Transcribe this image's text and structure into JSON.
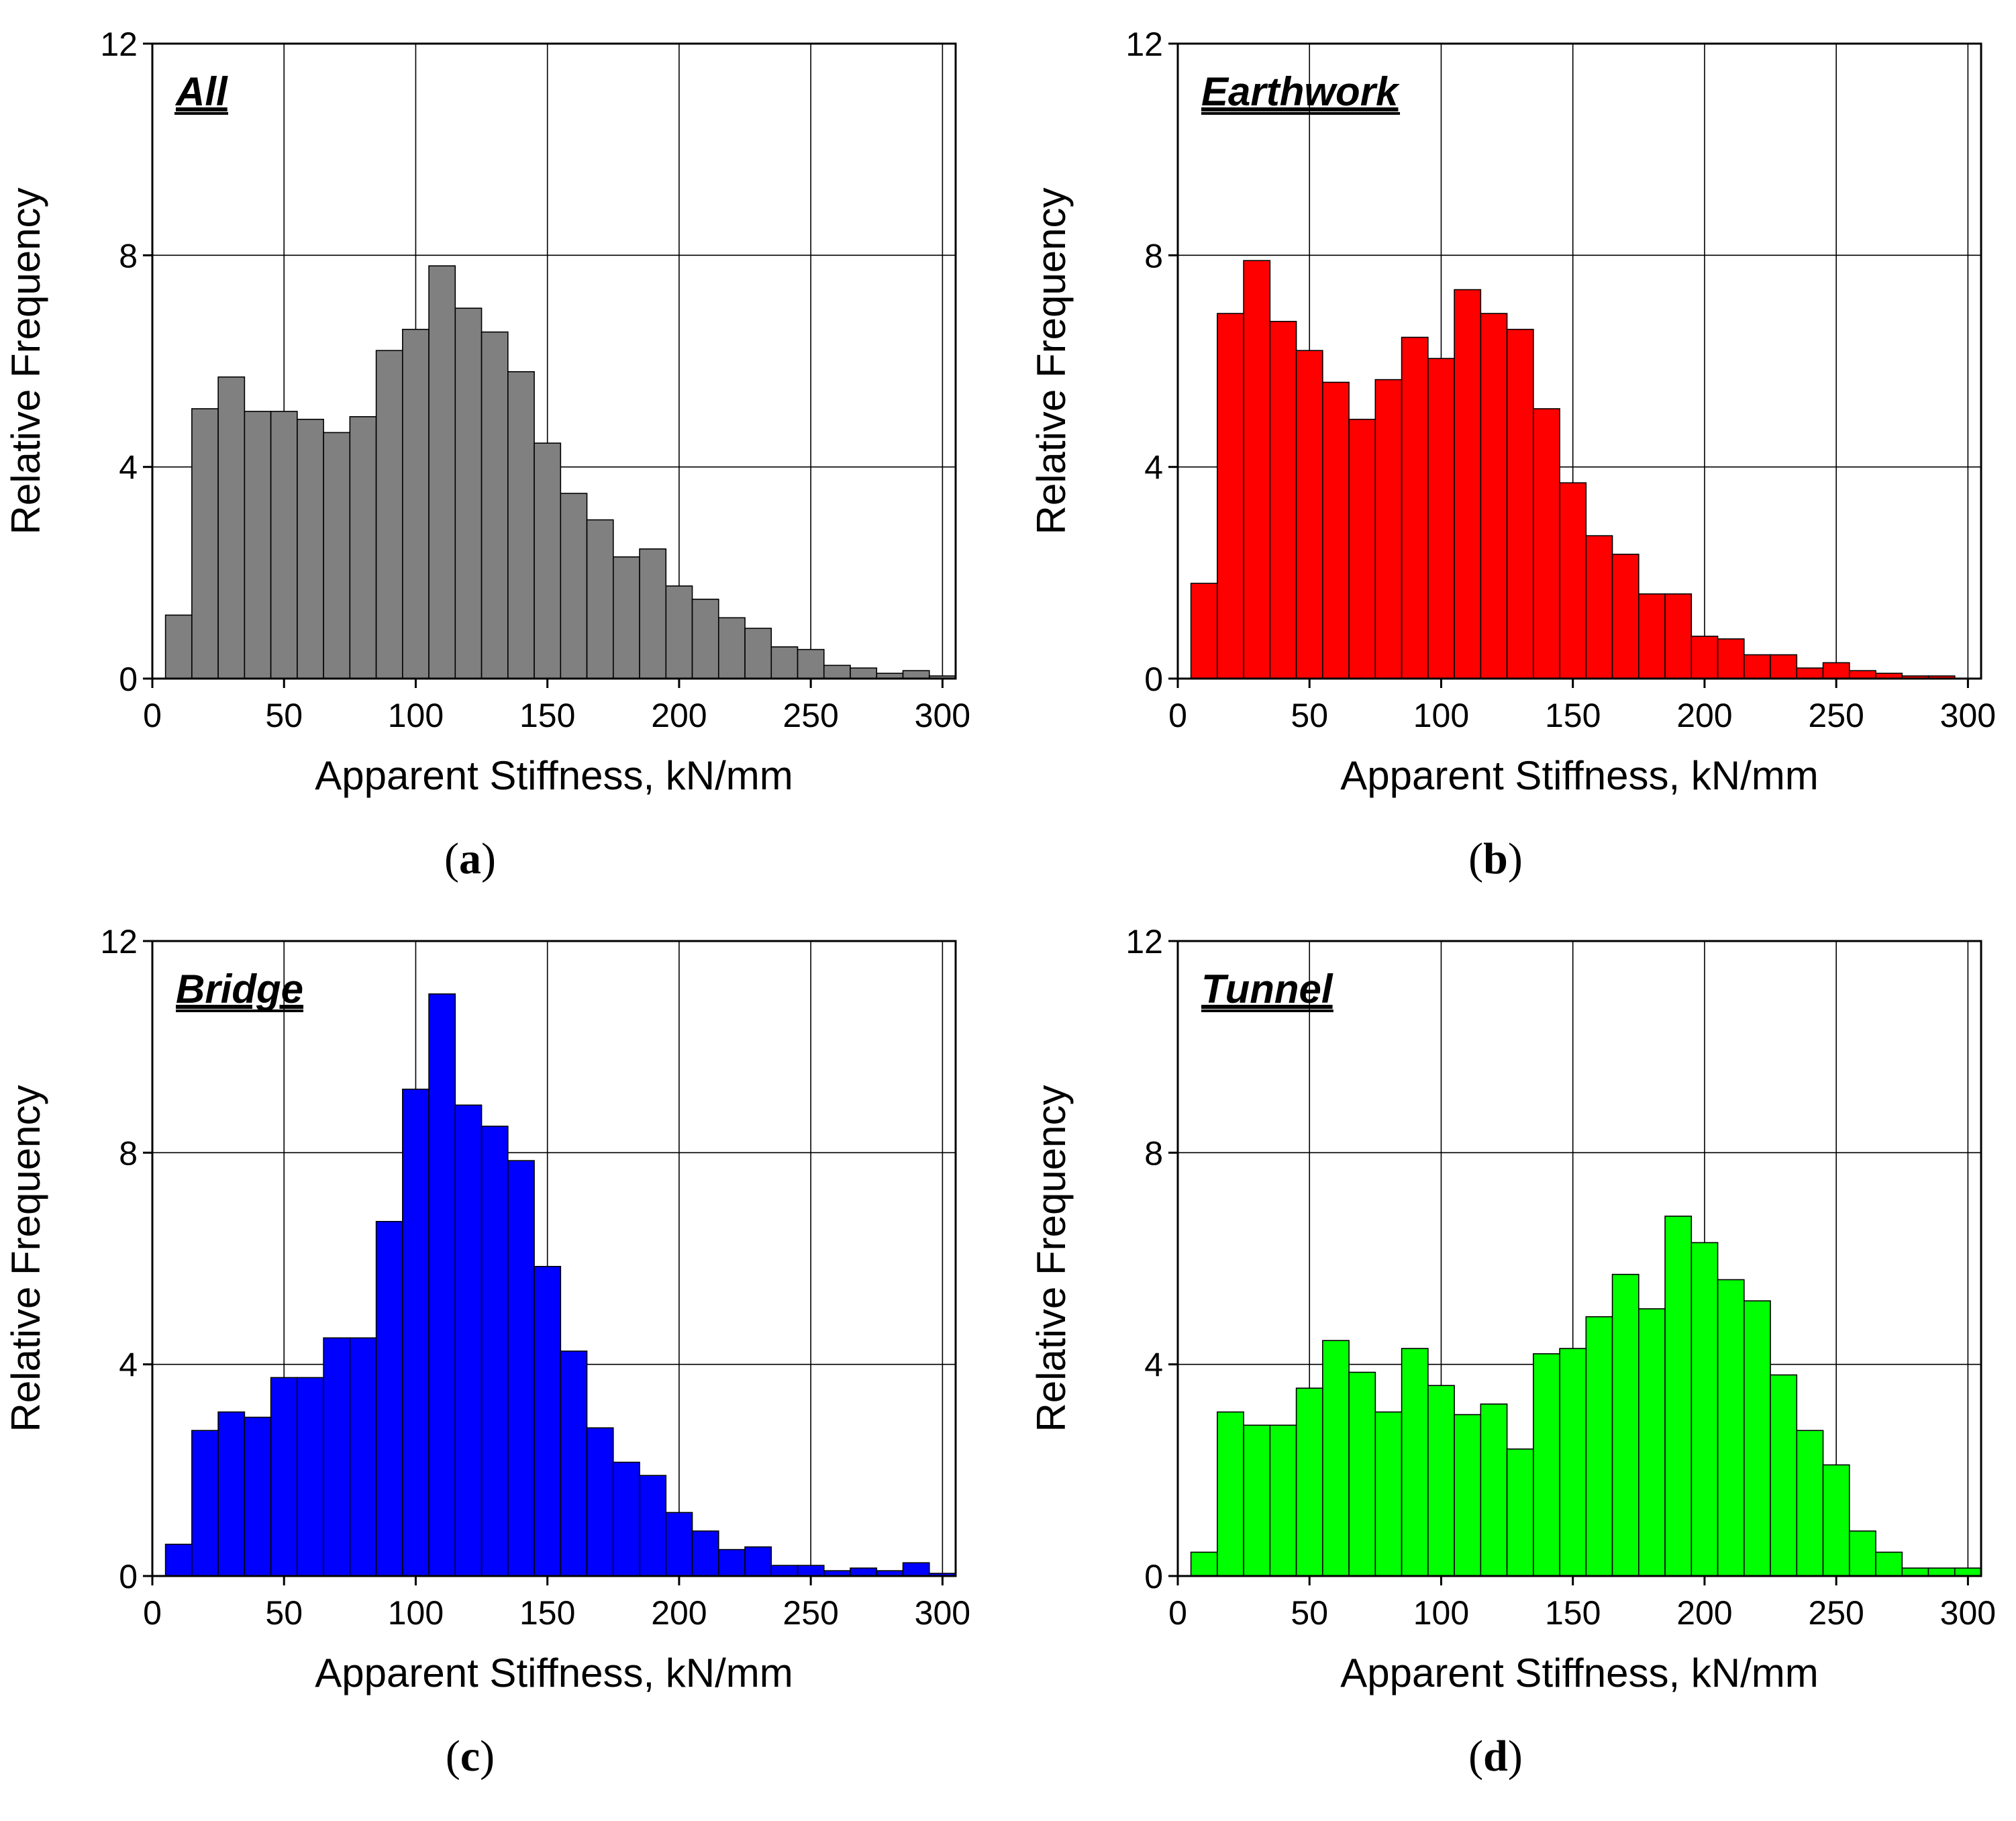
{
  "figure": {
    "panels": [
      {
        "key": "a",
        "letter": "a",
        "title": "All",
        "color": "#808080"
      },
      {
        "key": "b",
        "letter": "b",
        "title": "Earthwork",
        "color": "#ff0000"
      },
      {
        "key": "c",
        "letter": "c",
        "title": "Bridge",
        "color": "#0000ff"
      },
      {
        "key": "d",
        "letter": "d",
        "title": "Tunnel",
        "color": "#00ff00"
      }
    ]
  },
  "chart_data": [
    {
      "type": "bar",
      "title": "All",
      "xlabel": "Apparent Stiffness, kN/mm",
      "ylabel": "Relative Frequency",
      "xlim": [
        0,
        305
      ],
      "ylim": [
        0,
        12
      ],
      "xticks": [
        0,
        50,
        100,
        150,
        200,
        250,
        300
      ],
      "yticks": [
        0,
        4,
        8,
        12
      ],
      "bin_width": 10,
      "bin_starts": [
        5,
        15,
        25,
        35,
        45,
        55,
        65,
        75,
        85,
        95,
        105,
        115,
        125,
        135,
        145,
        155,
        165,
        175,
        185,
        195,
        205,
        215,
        225,
        235,
        245,
        255,
        265,
        275,
        285,
        295
      ],
      "values": [
        1.2,
        5.1,
        5.7,
        5.05,
        5.05,
        4.9,
        4.65,
        4.95,
        6.2,
        6.6,
        7.8,
        7.0,
        6.55,
        5.8,
        4.45,
        3.5,
        3.0,
        2.3,
        2.45,
        1.75,
        1.5,
        1.15,
        0.95,
        0.6,
        0.55,
        0.25,
        0.2,
        0.1,
        0.15,
        0.05
      ],
      "color": "#808080",
      "grid": true
    },
    {
      "type": "bar",
      "title": "Earthwork",
      "xlabel": "Apparent Stiffness, kN/mm",
      "ylabel": "Relative Frequency",
      "xlim": [
        0,
        305
      ],
      "ylim": [
        0,
        12
      ],
      "xticks": [
        0,
        50,
        100,
        150,
        200,
        250,
        300
      ],
      "yticks": [
        0,
        4,
        8,
        12
      ],
      "bin_width": 10,
      "bin_starts": [
        5,
        15,
        25,
        35,
        45,
        55,
        65,
        75,
        85,
        95,
        105,
        115,
        125,
        135,
        145,
        155,
        165,
        175,
        185,
        195,
        205,
        215,
        225,
        235,
        245,
        255,
        265,
        275,
        285
      ],
      "values": [
        1.8,
        6.9,
        7.9,
        6.75,
        6.2,
        5.6,
        4.9,
        5.65,
        6.45,
        6.05,
        7.35,
        6.9,
        6.6,
        5.1,
        3.7,
        2.7,
        2.35,
        1.6,
        1.6,
        0.8,
        0.75,
        0.45,
        0.45,
        0.2,
        0.3,
        0.15,
        0.1,
        0.05,
        0.05
      ],
      "color": "#ff0000",
      "grid": true
    },
    {
      "type": "bar",
      "title": "Bridge",
      "xlabel": "Apparent Stiffness, kN/mm",
      "ylabel": "Relative Frequency",
      "xlim": [
        0,
        305
      ],
      "ylim": [
        0,
        12
      ],
      "xticks": [
        0,
        50,
        100,
        150,
        200,
        250,
        300
      ],
      "yticks": [
        0,
        4,
        8,
        12
      ],
      "bin_width": 10,
      "bin_starts": [
        5,
        15,
        25,
        35,
        45,
        55,
        65,
        75,
        85,
        95,
        105,
        115,
        125,
        135,
        145,
        155,
        165,
        175,
        185,
        195,
        205,
        215,
        225,
        235,
        245,
        255,
        265,
        275,
        285,
        295
      ],
      "values": [
        0.6,
        2.75,
        3.1,
        3.0,
        3.75,
        3.75,
        4.5,
        4.5,
        6.7,
        9.2,
        11.0,
        8.9,
        8.5,
        7.85,
        5.85,
        4.25,
        2.8,
        2.15,
        1.9,
        1.2,
        0.85,
        0.5,
        0.55,
        0.2,
        0.2,
        0.1,
        0.15,
        0.1,
        0.25,
        0.05
      ],
      "color": "#0000ff",
      "grid": true
    },
    {
      "type": "bar",
      "title": "Tunnel",
      "xlabel": "Apparent Stiffness, kN/mm",
      "ylabel": "Relative Frequency",
      "xlim": [
        0,
        305
      ],
      "ylim": [
        0,
        12
      ],
      "xticks": [
        0,
        50,
        100,
        150,
        200,
        250,
        300
      ],
      "yticks": [
        0,
        4,
        8,
        12
      ],
      "bin_width": 10,
      "bin_starts": [
        5,
        15,
        25,
        35,
        45,
        55,
        65,
        75,
        85,
        95,
        105,
        115,
        125,
        135,
        145,
        155,
        165,
        175,
        185,
        195,
        205,
        215,
        225,
        235,
        245,
        255,
        265,
        275,
        285,
        295
      ],
      "values": [
        0.45,
        3.1,
        2.85,
        2.85,
        3.55,
        4.45,
        3.85,
        3.1,
        4.3,
        3.6,
        3.05,
        3.25,
        2.4,
        4.2,
        4.3,
        4.9,
        5.7,
        5.05,
        6.8,
        6.3,
        5.6,
        5.2,
        3.8,
        2.75,
        2.1,
        0.85,
        0.45,
        0.15,
        0.15,
        0.15
      ],
      "color": "#00ff00",
      "grid": true
    }
  ]
}
